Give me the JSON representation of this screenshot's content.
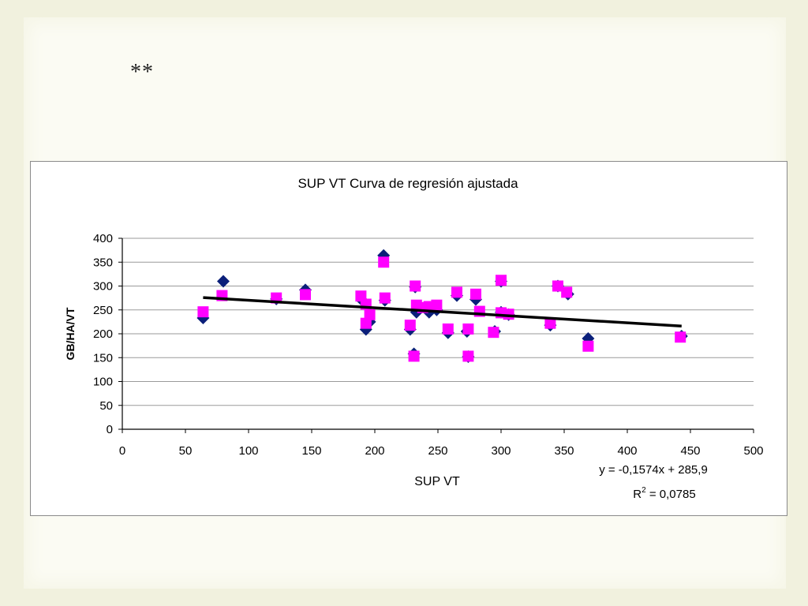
{
  "slide": {
    "marker": "**"
  },
  "chart_data": {
    "type": "scatter",
    "title": "SUP VT Curva de regresión ajustada",
    "xlabel": "SUP VT",
    "ylabel": "GB/HA/VT",
    "xlim": [
      0,
      500
    ],
    "ylim": [
      0,
      400
    ],
    "x_ticks": [
      0,
      50,
      100,
      150,
      200,
      250,
      300,
      350,
      400,
      450,
      500
    ],
    "y_ticks": [
      0,
      50,
      100,
      150,
      200,
      250,
      300,
      350,
      400
    ],
    "grid": "horizontal",
    "series": [
      {
        "name": "",
        "marker": "diamond",
        "color": "#0b1f7a",
        "points": [
          [
            64,
            233
          ],
          [
            80,
            310
          ],
          [
            122,
            273
          ],
          [
            145,
            292
          ],
          [
            190,
            270
          ],
          [
            193,
            209
          ],
          [
            196,
            225
          ],
          [
            207,
            364
          ],
          [
            208,
            270
          ],
          [
            228,
            209
          ],
          [
            231,
            158
          ],
          [
            232,
            298
          ],
          [
            233,
            245
          ],
          [
            243,
            245
          ],
          [
            249,
            250
          ],
          [
            258,
            202
          ],
          [
            265,
            280
          ],
          [
            273,
            205
          ],
          [
            274,
            152
          ],
          [
            280,
            272
          ],
          [
            295,
            205
          ],
          [
            300,
            310
          ],
          [
            300,
            245
          ],
          [
            306,
            240
          ],
          [
            339,
            218
          ],
          [
            345,
            300
          ],
          [
            353,
            283
          ],
          [
            369,
            190
          ],
          [
            443,
            195
          ]
        ]
      },
      {
        "name": "",
        "marker": "square",
        "color": "#ff00ff",
        "points": [
          [
            64,
            246
          ],
          [
            79,
            280
          ],
          [
            122,
            275
          ],
          [
            145,
            282
          ],
          [
            189,
            279
          ],
          [
            193,
            262
          ],
          [
            193,
            222
          ],
          [
            196,
            240
          ],
          [
            207,
            350
          ],
          [
            208,
            275
          ],
          [
            228,
            218
          ],
          [
            231,
            153
          ],
          [
            232,
            300
          ],
          [
            233,
            260
          ],
          [
            238,
            255
          ],
          [
            243,
            257
          ],
          [
            249,
            260
          ],
          [
            258,
            210
          ],
          [
            265,
            287
          ],
          [
            274,
            210
          ],
          [
            274,
            153
          ],
          [
            280,
            283
          ],
          [
            283,
            247
          ],
          [
            294,
            203
          ],
          [
            300,
            312
          ],
          [
            300,
            244
          ],
          [
            306,
            241
          ],
          [
            339,
            222
          ],
          [
            345,
            300
          ],
          [
            352,
            287
          ],
          [
            369,
            174
          ],
          [
            442,
            193
          ]
        ]
      }
    ],
    "trendline": {
      "slope": -0.1574,
      "intercept": 285.9,
      "x_range": [
        64,
        443
      ],
      "color": "#000000"
    },
    "annotations": {
      "equation": "y = -0,1574x + 285,9",
      "r2_label": "R",
      "r2_exp": "2",
      "r2_value": " = 0,0785"
    }
  }
}
